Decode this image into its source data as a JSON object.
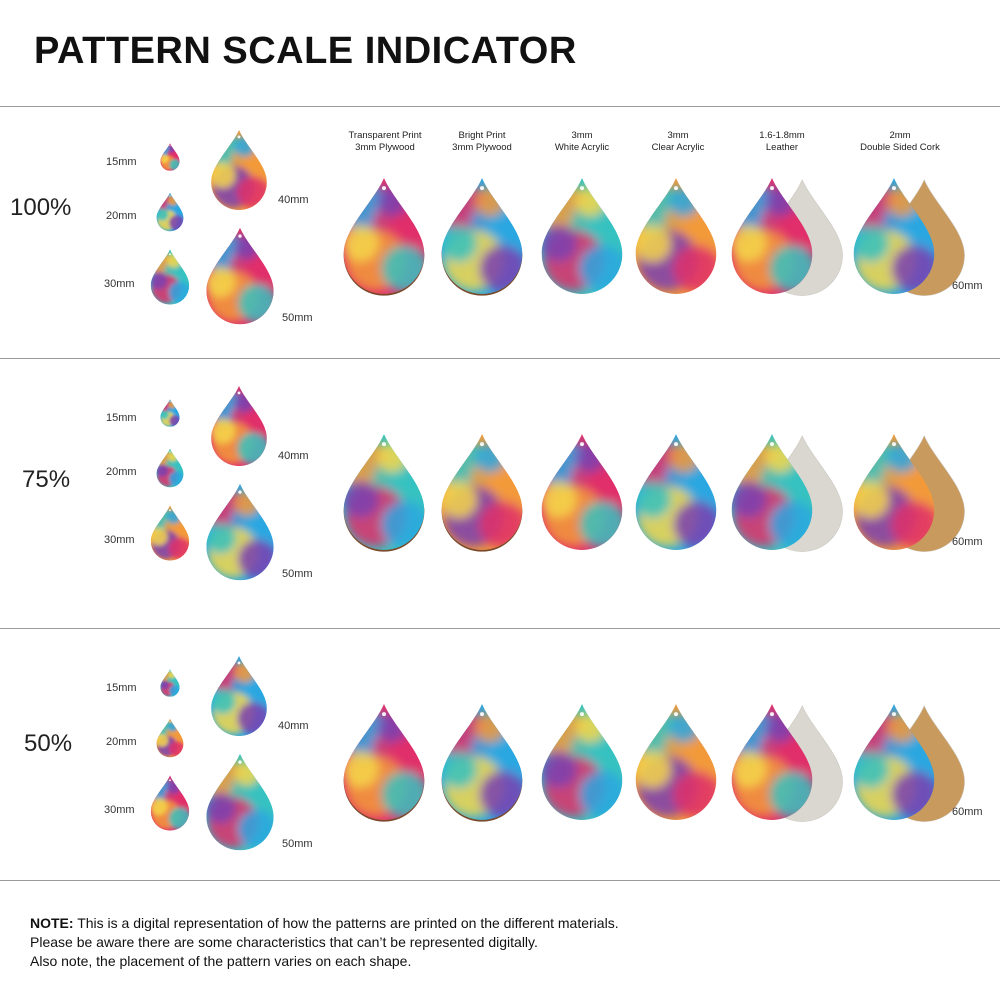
{
  "title": "PATTERN SCALE INDICATOR",
  "materials": [
    {
      "line1": "Transparent Print",
      "line2": "3mm Plywood",
      "back": "wood"
    },
    {
      "line1": "Bright Print",
      "line2": "3mm Plywood",
      "back": "wood"
    },
    {
      "line1": "3mm",
      "line2": "White Acrylic",
      "back": "none"
    },
    {
      "line1": "3mm",
      "line2": "Clear Acrylic",
      "back": "none"
    },
    {
      "line1": "1.6-1.8mm",
      "line2": "Leather",
      "back": "suede"
    },
    {
      "line1": "2mm",
      "line2": "Double Sided Cork",
      "back": "cork"
    }
  ],
  "sizes": [
    "15mm",
    "20mm",
    "30mm",
    "40mm",
    "50mm"
  ],
  "large_size": "60mm",
  "sections": [
    {
      "scale": "100%"
    },
    {
      "scale": "75%"
    },
    {
      "scale": "50%"
    }
  ],
  "colors": {
    "magenta": "#e0306a",
    "blue": "#2aa7e0",
    "teal": "#36c2c0",
    "orange": "#f29a3a",
    "yellow": "#f4d74a",
    "purple": "#7a3fb0",
    "wood": "#7a4a2a",
    "suede": "#d9d7d0",
    "cork": "#c99a5e"
  },
  "note": {
    "label": "NOTE:",
    "line1": "This is a digital representation of how the patterns are printed on the different materials.",
    "line2": "Please be aware there are some characteristics that can’t be represented digitally.",
    "line3": "Also note, the placement of the pattern varies on each shape."
  }
}
